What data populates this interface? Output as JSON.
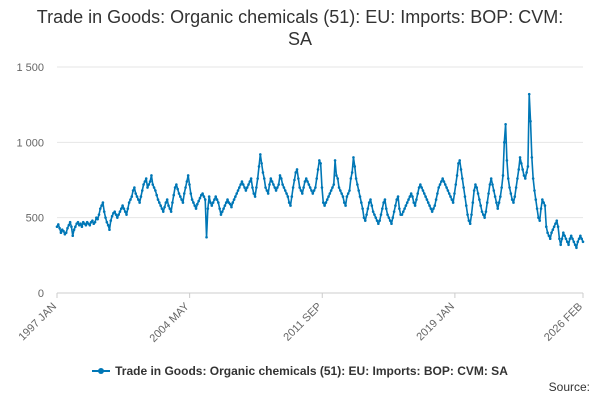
{
  "chart_data": {
    "type": "line",
    "title": "Trade in Goods: Organic chemicals (51): EU: Imports: BOP: CVM: SA",
    "xlabel": "",
    "ylabel": "",
    "ylim": [
      0,
      1500
    ],
    "yticks": [
      0,
      500,
      1000,
      1500
    ],
    "ytick_labels": [
      "0",
      "500",
      "1 000",
      "1 500"
    ],
    "xticks": [
      "1997 JAN",
      "2004 MAY",
      "2011 SEP",
      "2019 JAN",
      "2026 FEB"
    ],
    "x_range": [
      "1997 JAN",
      "2026 FEB"
    ],
    "grid": true,
    "legend_position": "bottom",
    "series": [
      {
        "name": "Trade in Goods: Organic chemicals (51): EU: Imports: BOP: CVM: SA",
        "color": "#0077b6",
        "x_start": "1997 JAN",
        "x_step": "1 month",
        "values": [
          440,
          455,
          430,
          400,
          420,
          410,
          390,
          400,
          430,
          450,
          470,
          440,
          380,
          420,
          440,
          460,
          470,
          450,
          460,
          440,
          470,
          460,
          450,
          470,
          460,
          450,
          470,
          480,
          460,
          470,
          500,
          490,
          520,
          560,
          580,
          600,
          540,
          500,
          470,
          450,
          420,
          480,
          510,
          530,
          540,
          520,
          500,
          520,
          540,
          560,
          580,
          560,
          540,
          520,
          560,
          600,
          620,
          640,
          680,
          700,
          660,
          640,
          620,
          600,
          640,
          680,
          720,
          740,
          760,
          700,
          720,
          740,
          780,
          720,
          700,
          680,
          650,
          620,
          600,
          580,
          560,
          540,
          570,
          600,
          620,
          580,
          560,
          540,
          600,
          650,
          700,
          720,
          690,
          660,
          640,
          620,
          600,
          660,
          700,
          740,
          780,
          720,
          660,
          620,
          600,
          580,
          560,
          590,
          610,
          630,
          650,
          660,
          640,
          620,
          370,
          560,
          640,
          600,
          580,
          600,
          620,
          640,
          620,
          600,
          560,
          520,
          540,
          560,
          580,
          600,
          620,
          600,
          590,
          570,
          600,
          620,
          640,
          660,
          680,
          700,
          720,
          740,
          720,
          700,
          680,
          700,
          720,
          740,
          760,
          700,
          660,
          640,
          700,
          760,
          840,
          920,
          860,
          800,
          760,
          700,
          680,
          660,
          720,
          760,
          740,
          720,
          700,
          680,
          700,
          720,
          780,
          760,
          720,
          700,
          680,
          660,
          640,
          600,
          580,
          640,
          700,
          750,
          800,
          820,
          760,
          700,
          680,
          660,
          700,
          740,
          760,
          740,
          720,
          700,
          680,
          660,
          680,
          700,
          760,
          820,
          880,
          860,
          700,
          600,
          580,
          600,
          620,
          640,
          660,
          680,
          700,
          720,
          880,
          780,
          760,
          700,
          680,
          660,
          640,
          600,
          580,
          640,
          660,
          680,
          760,
          800,
          900,
          840,
          760,
          720,
          680,
          640,
          600,
          560,
          500,
          480,
          520,
          560,
          600,
          620,
          580,
          540,
          520,
          500,
          480,
          460,
          480,
          520,
          560,
          600,
          620,
          560,
          520,
          500,
          480,
          460,
          500,
          540,
          580,
          620,
          640,
          560,
          520,
          520,
          540,
          560,
          580,
          600,
          620,
          640,
          660,
          640,
          600,
          580,
          620,
          660,
          700,
          720,
          700,
          680,
          660,
          640,
          620,
          600,
          580,
          560,
          540,
          560,
          580,
          620,
          660,
          700,
          720,
          740,
          760,
          740,
          720,
          700,
          680,
          660,
          640,
          620,
          600,
          660,
          720,
          780,
          860,
          880,
          820,
          760,
          700,
          640,
          580,
          520,
          480,
          460,
          520,
          600,
          680,
          720,
          700,
          660,
          620,
          580,
          540,
          520,
          500,
          540,
          600,
          660,
          720,
          760,
          720,
          680,
          640,
          600,
          560,
          600,
          640,
          700,
          780,
          1000,
          1120,
          880,
          760,
          700,
          660,
          620,
          600,
          640,
          700,
          760,
          820,
          900,
          860,
          820,
          780,
          760,
          800,
          840,
          1320,
          1140,
          900,
          760,
          680,
          620,
          560,
          500,
          480,
          560,
          620,
          600,
          580,
          440,
          400,
          380,
          360,
          400,
          420,
          440,
          460,
          480,
          440,
          360,
          320,
          360,
          400,
          380,
          360,
          340,
          320,
          360,
          380,
          360,
          340,
          320,
          300,
          340,
          360,
          380,
          360,
          340
        ]
      }
    ]
  },
  "source_label": "Source:"
}
